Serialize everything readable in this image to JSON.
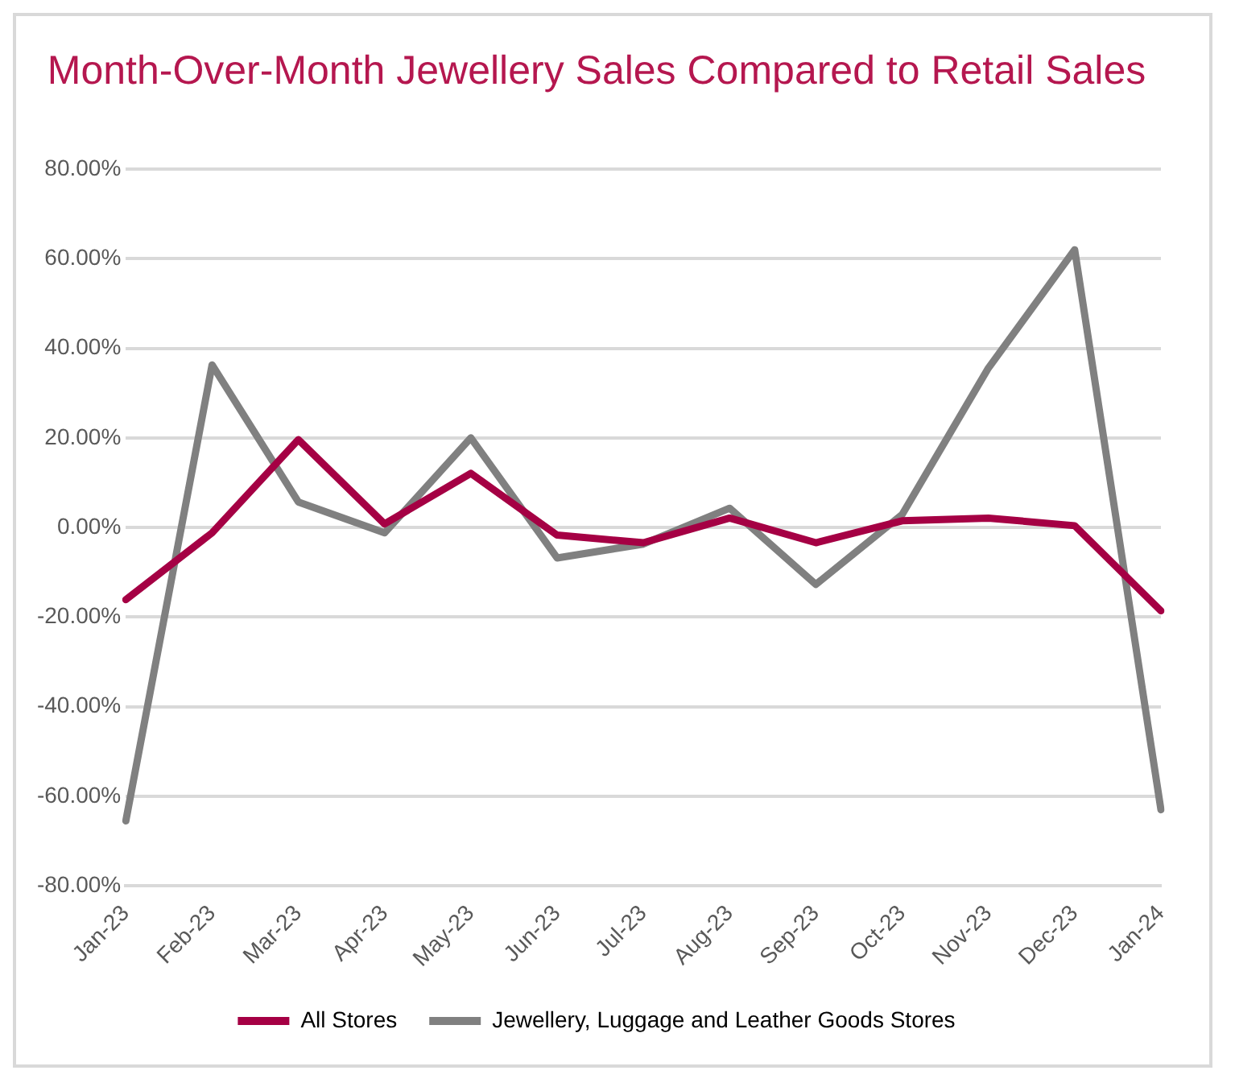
{
  "chart_data": {
    "type": "line",
    "title": "Month-Over-Month Jewellery Sales Compared to Retail Sales",
    "categories": [
      "Jan-23",
      "Feb-23",
      "Mar-23",
      "Apr-23",
      "May-23",
      "Jun-23",
      "Jul-23",
      "Aug-23",
      "Sep-23",
      "Oct-23",
      "Nov-23",
      "Dec-23",
      "Jan-24"
    ],
    "series": [
      {
        "name": "All Stores",
        "color": "#a50044",
        "values": [
          -16.1,
          -1.2,
          19.6,
          0.8,
          12.1,
          -1.7,
          -3.4,
          2.1,
          -3.4,
          1.5,
          2.1,
          0.4,
          -18.6
        ]
      },
      {
        "name": "Jewellery, Luggage and Leather Goods Stores",
        "color": "#808080",
        "values": [
          -65.5,
          36.3,
          5.7,
          -1.2,
          20,
          -6.8,
          -3.7,
          4.3,
          -12.7,
          2.9,
          35.6,
          62,
          -63
        ]
      }
    ],
    "ylim": [
      -80,
      80
    ],
    "yticks": [
      {
        "value": 80,
        "label": "80.00%"
      },
      {
        "value": 60,
        "label": "60.00%"
      },
      {
        "value": 40,
        "label": "40.00%"
      },
      {
        "value": 20,
        "label": "20.00%"
      },
      {
        "value": 0,
        "label": "0.00%"
      },
      {
        "value": -20,
        "label": "-20.00%"
      },
      {
        "value": -40,
        "label": "-40.00%"
      },
      {
        "value": -60,
        "label": "-60.00%"
      },
      {
        "value": -80,
        "label": "-80.00%"
      }
    ],
    "grid": "y",
    "legend": "bottom",
    "marker": "none",
    "line_style": "solid"
  }
}
